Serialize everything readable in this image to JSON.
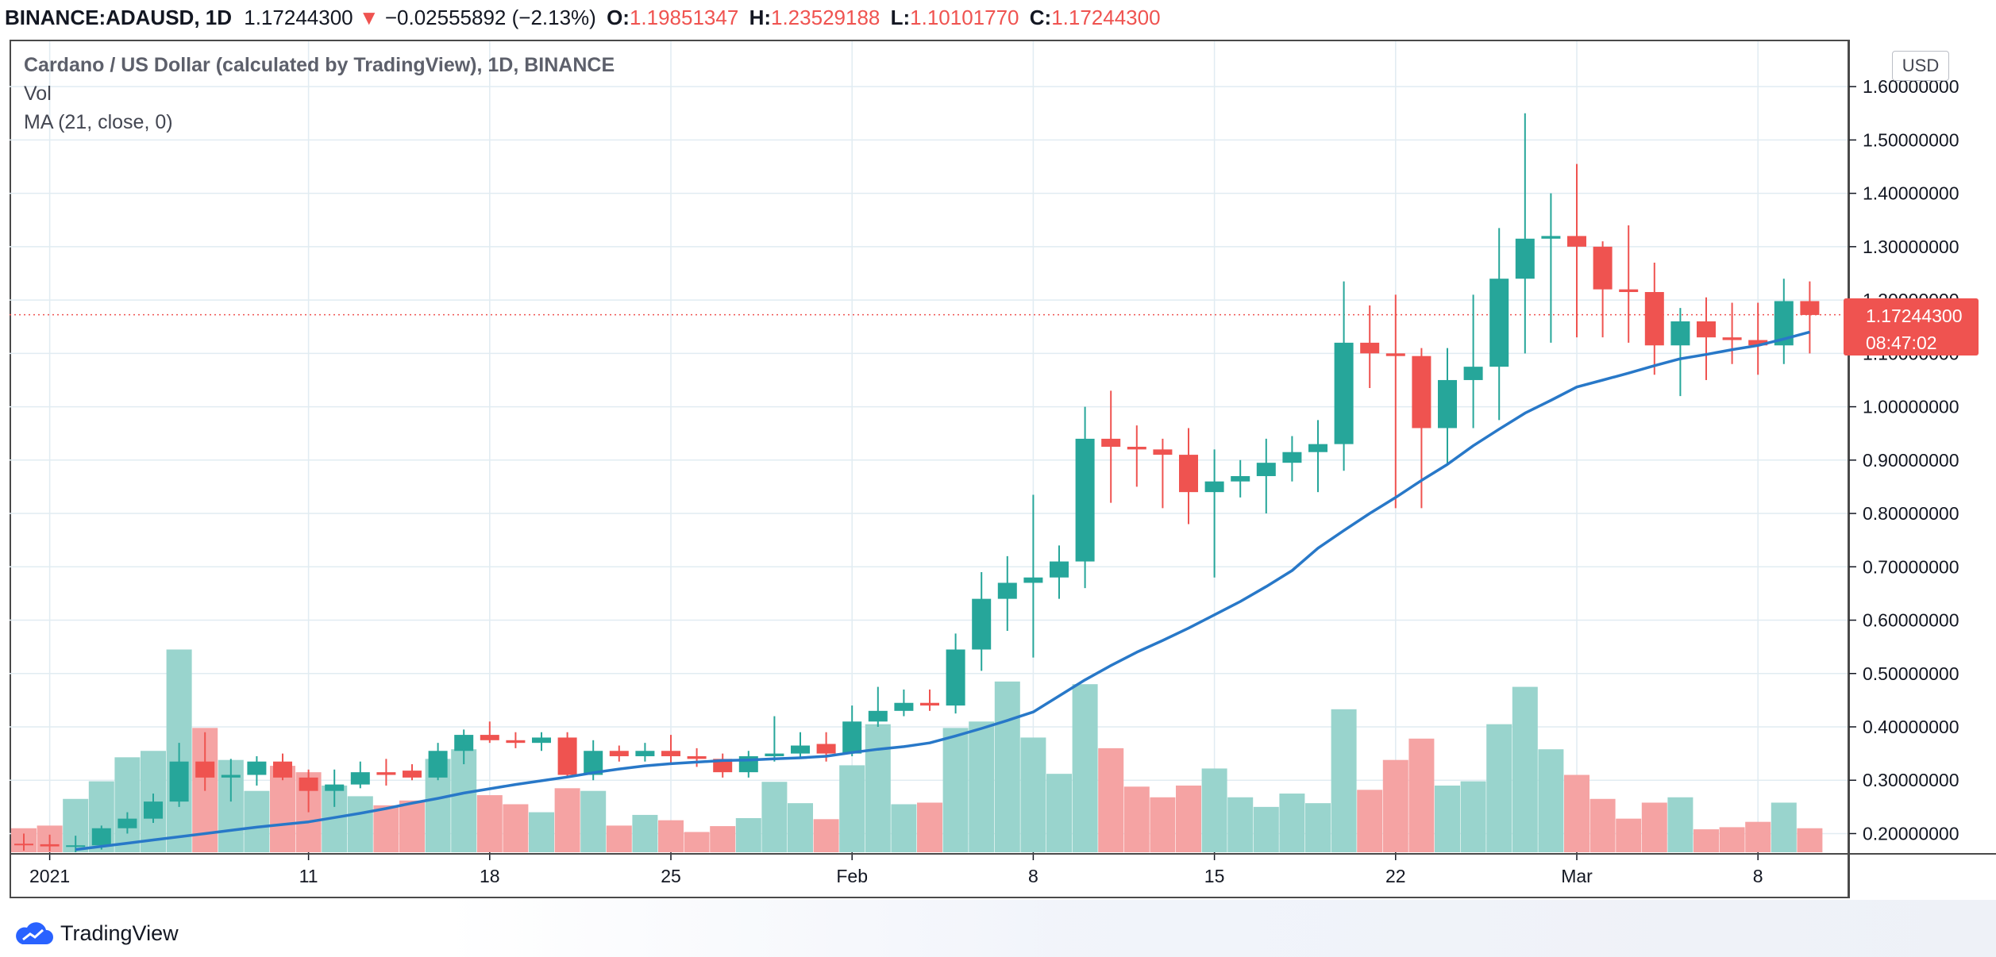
{
  "header": {
    "symbol": "BINANCE:ADAUSD, 1D",
    "last": "1.17244300",
    "arrow": "▼",
    "change": "−0.02555892 (−2.13%)",
    "o_label": "O:",
    "o_value": "1.19851347",
    "h_label": "H:",
    "h_value": "1.23529188",
    "l_label": "L:",
    "l_value": "1.10101770",
    "c_label": "C:",
    "c_value": "1.17244300"
  },
  "legend": {
    "title": "Cardano / US Dollar (calculated by TradingView), 1D, BINANCE",
    "vol": "Vol",
    "ma": "MA (21, close, 0)"
  },
  "price_axis": {
    "currency": "USD"
  },
  "last_price": {
    "value": "1.17244300",
    "countdown": "08:47:02"
  },
  "footer": {
    "brand": "TradingView"
  },
  "colors": {
    "up": "#26a69a",
    "down": "#ef5350",
    "up_vol": "#99d4cd",
    "down_vol": "#f5a3a3",
    "ma": "#2878c8",
    "grid": "#e1ecf2"
  },
  "chart_data": {
    "type": "candlestick",
    "title": "Cardano / US Dollar (calculated by TradingView), 1D, BINANCE",
    "yaxis": {
      "ylim": [
        0.165,
        1.685
      ],
      "ticks": [
        0.2,
        0.3,
        0.4,
        0.5,
        0.6,
        0.7,
        0.8,
        0.9,
        1.0,
        1.1,
        1.2,
        1.3,
        1.4,
        1.5,
        1.6
      ],
      "tick_labels": [
        "0.20000000",
        "0.30000000",
        "0.40000000",
        "0.50000000",
        "0.60000000",
        "0.70000000",
        "0.80000000",
        "0.90000000",
        "1.00000000",
        "1.10000000",
        "1.20000000",
        "1.30000000",
        "1.40000000",
        "1.50000000",
        "1.60000000"
      ]
    },
    "xaxis": {
      "tick_labels": [
        {
          "index": 1,
          "label": "2021"
        },
        {
          "index": 11,
          "label": "11"
        },
        {
          "index": 18,
          "label": "18"
        },
        {
          "index": 25,
          "label": "25"
        },
        {
          "index": 32,
          "label": "Feb"
        },
        {
          "index": 39,
          "label": "8"
        },
        {
          "index": 46,
          "label": "15"
        },
        {
          "index": 53,
          "label": "22"
        },
        {
          "index": 60,
          "label": "Mar"
        },
        {
          "index": 67,
          "label": "8"
        }
      ]
    },
    "dates": [
      "Dec 31",
      "Jan 1",
      "Jan 2",
      "Jan 3",
      "Jan 4",
      "Jan 5",
      "Jan 6",
      "Jan 7",
      "Jan 8",
      "Jan 9",
      "Jan 10",
      "Jan 11",
      "Jan 12",
      "Jan 13",
      "Jan 14",
      "Jan 15",
      "Jan 16",
      "Jan 17",
      "Jan 18",
      "Jan 19",
      "Jan 20",
      "Jan 21",
      "Jan 22",
      "Jan 23",
      "Jan 24",
      "Jan 25",
      "Jan 26",
      "Jan 27",
      "Jan 28",
      "Jan 29",
      "Jan 30",
      "Jan 31",
      "Feb 1",
      "Feb 2",
      "Feb 3",
      "Feb 4",
      "Feb 5",
      "Feb 6",
      "Feb 7",
      "Feb 8",
      "Feb 9",
      "Feb 10",
      "Feb 11",
      "Feb 12",
      "Feb 13",
      "Feb 14",
      "Feb 15",
      "Feb 16",
      "Feb 17",
      "Feb 18",
      "Feb 19",
      "Feb 20",
      "Feb 21",
      "Feb 22",
      "Feb 23",
      "Feb 24",
      "Feb 25",
      "Feb 26",
      "Feb 27",
      "Feb 28",
      "Mar 1",
      "Mar 2",
      "Mar 3",
      "Mar 4",
      "Mar 5",
      "Mar 6",
      "Mar 7",
      "Mar 8",
      "Mar 9",
      "Mar 10"
    ],
    "ohlc": [
      [
        0.181,
        0.2,
        0.168,
        0.18
      ],
      [
        0.18,
        0.198,
        0.167,
        0.176
      ],
      [
        0.176,
        0.196,
        0.165,
        0.178
      ],
      [
        0.178,
        0.215,
        0.17,
        0.21
      ],
      [
        0.21,
        0.24,
        0.2,
        0.228
      ],
      [
        0.228,
        0.275,
        0.22,
        0.26
      ],
      [
        0.26,
        0.37,
        0.25,
        0.335
      ],
      [
        0.335,
        0.39,
        0.28,
        0.305
      ],
      [
        0.305,
        0.34,
        0.26,
        0.31
      ],
      [
        0.31,
        0.345,
        0.29,
        0.335
      ],
      [
        0.335,
        0.35,
        0.3,
        0.305
      ],
      [
        0.305,
        0.32,
        0.24,
        0.28
      ],
      [
        0.28,
        0.32,
        0.25,
        0.292
      ],
      [
        0.292,
        0.335,
        0.285,
        0.315
      ],
      [
        0.315,
        0.34,
        0.29,
        0.31
      ],
      [
        0.318,
        0.33,
        0.3,
        0.305
      ],
      [
        0.305,
        0.37,
        0.3,
        0.355
      ],
      [
        0.355,
        0.395,
        0.33,
        0.385
      ],
      [
        0.385,
        0.41,
        0.37,
        0.375
      ],
      [
        0.375,
        0.39,
        0.36,
        0.37
      ],
      [
        0.37,
        0.39,
        0.355,
        0.38
      ],
      [
        0.38,
        0.39,
        0.305,
        0.31
      ],
      [
        0.31,
        0.375,
        0.3,
        0.355
      ],
      [
        0.355,
        0.365,
        0.335,
        0.345
      ],
      [
        0.345,
        0.37,
        0.335,
        0.355
      ],
      [
        0.355,
        0.385,
        0.33,
        0.345
      ],
      [
        0.345,
        0.36,
        0.325,
        0.34
      ],
      [
        0.34,
        0.35,
        0.305,
        0.315
      ],
      [
        0.315,
        0.355,
        0.305,
        0.345
      ],
      [
        0.345,
        0.42,
        0.335,
        0.35
      ],
      [
        0.35,
        0.39,
        0.34,
        0.365
      ],
      [
        0.368,
        0.39,
        0.335,
        0.35
      ],
      [
        0.35,
        0.44,
        0.345,
        0.41
      ],
      [
        0.41,
        0.475,
        0.4,
        0.43
      ],
      [
        0.43,
        0.47,
        0.42,
        0.445
      ],
      [
        0.445,
        0.47,
        0.43,
        0.44
      ],
      [
        0.44,
        0.575,
        0.425,
        0.545
      ],
      [
        0.545,
        0.69,
        0.505,
        0.64
      ],
      [
        0.64,
        0.72,
        0.58,
        0.67
      ],
      [
        0.67,
        0.835,
        0.53,
        0.68
      ],
      [
        0.68,
        0.74,
        0.64,
        0.71
      ],
      [
        0.71,
        1.0,
        0.66,
        0.94
      ],
      [
        0.94,
        1.03,
        0.82,
        0.925
      ],
      [
        0.925,
        0.965,
        0.85,
        0.92
      ],
      [
        0.92,
        0.94,
        0.81,
        0.91
      ],
      [
        0.91,
        0.96,
        0.78,
        0.84
      ],
      [
        0.84,
        0.92,
        0.68,
        0.86
      ],
      [
        0.86,
        0.9,
        0.83,
        0.87
      ],
      [
        0.87,
        0.94,
        0.8,
        0.895
      ],
      [
        0.895,
        0.945,
        0.86,
        0.915
      ],
      [
        0.915,
        0.975,
        0.84,
        0.93
      ],
      [
        0.93,
        1.235,
        0.88,
        1.12
      ],
      [
        1.12,
        1.19,
        1.035,
        1.1
      ],
      [
        1.1,
        1.21,
        0.81,
        1.095
      ],
      [
        1.095,
        1.11,
        0.81,
        0.96
      ],
      [
        0.96,
        1.11,
        0.89,
        1.05
      ],
      [
        1.05,
        1.21,
        0.96,
        1.075
      ],
      [
        1.075,
        1.335,
        0.975,
        1.24
      ],
      [
        1.24,
        1.55,
        1.1,
        1.315
      ],
      [
        1.315,
        1.4,
        1.12,
        1.32
      ],
      [
        1.32,
        1.455,
        1.13,
        1.3
      ],
      [
        1.3,
        1.31,
        1.13,
        1.22
      ],
      [
        1.22,
        1.34,
        1.12,
        1.215
      ],
      [
        1.215,
        1.27,
        1.06,
        1.115
      ],
      [
        1.115,
        1.185,
        1.02,
        1.16
      ],
      [
        1.16,
        1.205,
        1.05,
        1.13
      ],
      [
        1.13,
        1.195,
        1.08,
        1.125
      ],
      [
        1.125,
        1.195,
        1.06,
        1.115
      ],
      [
        1.115,
        1.24,
        1.08,
        1.198
      ],
      [
        1.198,
        1.235,
        1.1,
        1.172
      ]
    ],
    "volume_height_ticks": [
      0.21,
      0.215,
      0.265,
      0.298,
      0.343,
      0.355,
      0.545,
      0.398,
      0.338,
      0.28,
      0.327,
      0.315,
      0.29,
      0.27,
      0.253,
      0.262,
      0.34,
      0.358,
      0.272,
      0.255,
      0.24,
      0.285,
      0.28,
      0.215,
      0.235,
      0.225,
      0.203,
      0.214,
      0.229,
      0.297,
      0.257,
      0.227,
      0.328,
      0.405,
      0.255,
      0.258,
      0.398,
      0.41,
      0.485,
      0.38,
      0.312,
      0.48,
      0.36,
      0.288,
      0.268,
      0.29,
      0.322,
      0.268,
      0.25,
      0.275,
      0.257,
      0.433,
      0.282,
      0.338,
      0.378,
      0.29,
      0.298,
      0.405,
      0.475,
      0.358,
      0.31,
      0.265,
      0.228,
      0.258,
      0.268,
      0.208,
      0.212,
      0.222,
      0.258,
      0.21
    ],
    "ma": {
      "name": "MA (21, close, 0)",
      "values": [
        null,
        null,
        0.17,
        0.176,
        0.182,
        0.188,
        0.194,
        0.2,
        0.206,
        0.212,
        0.217,
        0.222,
        0.23,
        0.238,
        0.247,
        0.257,
        0.266,
        0.276,
        0.284,
        0.292,
        0.299,
        0.306,
        0.314,
        0.321,
        0.327,
        0.331,
        0.334,
        0.337,
        0.338,
        0.34,
        0.342,
        0.345,
        0.352,
        0.358,
        0.363,
        0.37,
        0.383,
        0.397,
        0.412,
        0.428,
        0.458,
        0.488,
        0.515,
        0.54,
        0.562,
        0.585,
        0.61,
        0.635,
        0.663,
        0.693,
        0.735,
        0.768,
        0.8,
        0.83,
        0.862,
        0.892,
        0.927,
        0.958,
        0.988,
        1.012,
        1.037,
        1.05,
        1.063,
        1.077,
        1.09,
        1.098,
        1.107,
        1.115,
        1.127,
        1.14
      ]
    },
    "last_price": 1.172443
  }
}
